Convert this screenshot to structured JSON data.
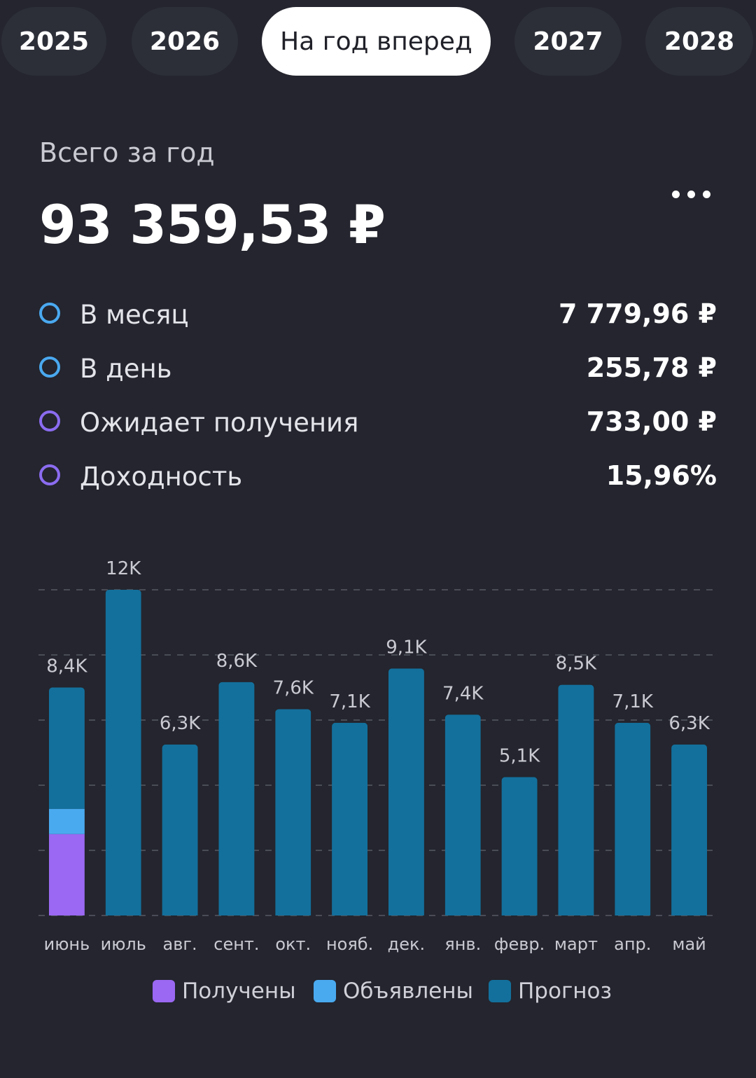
{
  "tabs": [
    {
      "label": "2025",
      "active": false
    },
    {
      "label": "2026",
      "active": false
    },
    {
      "label": "На год вперед",
      "active": true
    },
    {
      "label": "2027",
      "active": false
    },
    {
      "label": "2028",
      "active": false
    }
  ],
  "summary": {
    "total_label": "Всего за год",
    "total_value": "93 359,53 ₽"
  },
  "stats": [
    {
      "label": "В месяц",
      "value": "7 779,96 ₽",
      "dot_color": "#4aa9f0"
    },
    {
      "label": "В день",
      "value": "255,78 ₽",
      "dot_color": "#4aa9f0"
    },
    {
      "label": "Ожидает получения",
      "value": "733,00 ₽",
      "dot_color": "#8b6cf0"
    },
    {
      "label": "Доходность",
      "value": "15,96%",
      "dot_color": "#8b6cf0"
    }
  ],
  "legend": [
    {
      "label": "Получены",
      "color": "#9a68f2"
    },
    {
      "label": "Объявлены",
      "color": "#4aaaf0"
    },
    {
      "label": "Прогноз",
      "color": "#13709c"
    }
  ],
  "chart_data": {
    "type": "bar",
    "stacked": true,
    "categories": [
      "июнь",
      "июль",
      "авг.",
      "сент.",
      "окт.",
      "нояб.",
      "дек.",
      "янв.",
      "февр.",
      "март",
      "апр.",
      "май"
    ],
    "totals_labels": [
      "8,4K",
      "12K",
      "6,3K",
      "8,6K",
      "7,6K",
      "7,1K",
      "9,1K",
      "7,4K",
      "5,1K",
      "8,5K",
      "7,1K",
      "6,3K"
    ],
    "series": [
      {
        "name": "Получены",
        "color": "#9a68f2",
        "values": [
          3000,
          0,
          0,
          0,
          0,
          0,
          0,
          0,
          0,
          0,
          0,
          0
        ]
      },
      {
        "name": "Объявлены",
        "color": "#4aaaf0",
        "values": [
          930,
          0,
          0,
          0,
          0,
          0,
          0,
          0,
          0,
          0,
          0,
          0
        ]
      },
      {
        "name": "Прогноз",
        "color": "#13709c",
        "values": [
          4470,
          12000,
          6300,
          8600,
          7600,
          7100,
          9100,
          7400,
          5100,
          8500,
          7100,
          6300
        ]
      }
    ],
    "ylim": [
      0,
      12000
    ],
    "grid": true,
    "legend_position": "bottom"
  }
}
